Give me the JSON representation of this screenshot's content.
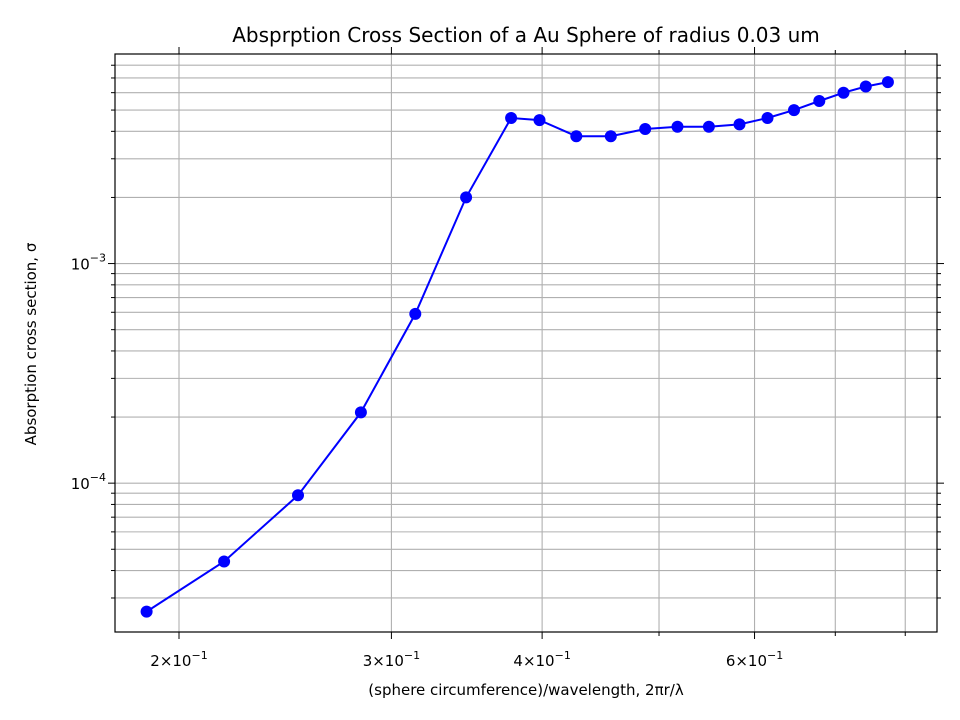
{
  "chart_data": {
    "type": "line",
    "title": "Absprption Cross Section of a Au Sphere of radius 0.03 um",
    "xlabel": "(sphere circumference)/wavelength, 2πr/λ",
    "ylabel": "Absorption cross section, σ",
    "xscale": "log",
    "yscale": "log",
    "xlim": [
      0.177,
      0.85
    ],
    "ylim": [
      2.1e-05,
      0.009
    ],
    "grid": "both (major and minor)",
    "series_color": "#0000ff",
    "x_tick_labels": [
      {
        "value": 0.2,
        "mant": "2",
        "exp": "−1"
      },
      {
        "value": 0.3,
        "mant": "3",
        "exp": "−1"
      },
      {
        "value": 0.4,
        "mant": "4",
        "exp": "−1"
      },
      {
        "value": 0.6,
        "mant": "6",
        "exp": "−1"
      }
    ],
    "y_tick_labels": [
      {
        "value": 0.0001,
        "base": "10",
        "exp": "−4"
      },
      {
        "value": 0.001,
        "base": "10",
        "exp": "−3"
      }
    ],
    "series": [
      {
        "x": [
          0.188,
          0.218,
          0.251,
          0.283,
          0.314,
          0.346,
          0.377,
          0.398,
          0.427,
          0.456,
          0.487,
          0.518,
          0.55,
          0.583,
          0.615,
          0.647,
          0.679,
          0.711,
          0.742,
          0.774
        ],
        "y": [
          2.6e-05,
          4.4e-05,
          8.8e-05,
          0.00021,
          0.00059,
          0.002,
          0.0046,
          0.0045,
          0.0038,
          0.0038,
          0.0041,
          0.0042,
          0.0042,
          0.0043,
          0.0046,
          0.005,
          0.0055,
          0.006,
          0.0064,
          0.0067
        ]
      }
    ]
  }
}
